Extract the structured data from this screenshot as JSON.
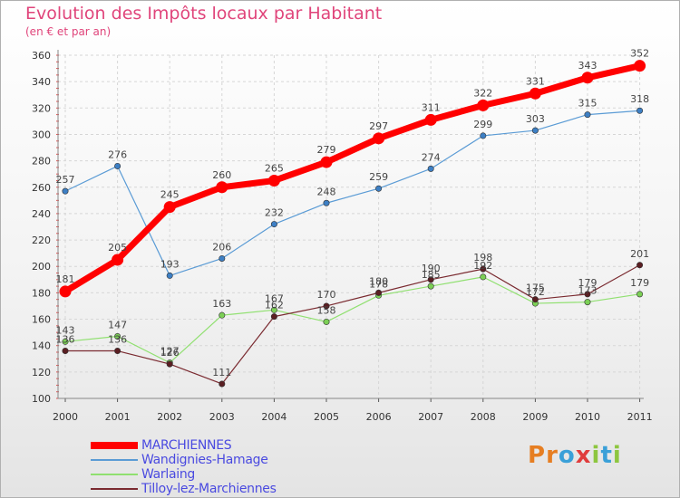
{
  "title": "Evolution des Impôts locaux par Habitant",
  "subtitle": "(en € et par an)",
  "logo": {
    "text": "Proxiti",
    "letter_colors": [
      "#e67e22",
      "#e67e22",
      "#3aa0d8",
      "#e03c3c",
      "#8dc63f",
      "#3aa0d8",
      "#8dc63f"
    ]
  },
  "chart_data": {
    "type": "line",
    "title": "Evolution des Impôts locaux par Habitant",
    "subtitle": "(en € et par an)",
    "xlabel": "",
    "ylabel": "",
    "ylim": [
      100,
      360
    ],
    "yticks": [
      100,
      120,
      140,
      160,
      180,
      200,
      220,
      240,
      260,
      280,
      300,
      320,
      340,
      360
    ],
    "grid": true,
    "legend_position": "bottom-left",
    "x": [
      "2000",
      "2001",
      "2002",
      "2003",
      "2004",
      "2005",
      "2006",
      "2007",
      "2008",
      "2009",
      "2010",
      "2011"
    ],
    "series": [
      {
        "name": "MARCHIENNES",
        "color": "#ff0000",
        "values": [
          181,
          205,
          245,
          260,
          265,
          279,
          297,
          311,
          322,
          331,
          343,
          352
        ]
      },
      {
        "name": "Wandignies-Hamage",
        "color": "#5a9bd5",
        "values": [
          257,
          276,
          193,
          206,
          232,
          248,
          259,
          274,
          299,
          303,
          315,
          318
        ]
      },
      {
        "name": "Warlaing",
        "color": "#90e070",
        "values": [
          143,
          147,
          127,
          163,
          167,
          158,
          178,
          185,
          192,
          172,
          173,
          179
        ]
      },
      {
        "name": "Tilloy-lez-Marchiennes",
        "color": "#7a2a30",
        "values": [
          136,
          136,
          126,
          111,
          162,
          170,
          180,
          190,
          198,
          175,
          179,
          201
        ]
      }
    ]
  }
}
